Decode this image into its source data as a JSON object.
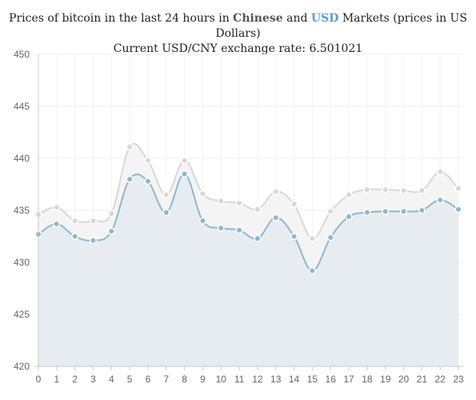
{
  "chart_data": {
    "type": "area",
    "title_parts": {
      "prefix": "Prices of bitcoin in the last 24 hours in",
      "series1": "Chinese",
      "conj": "and",
      "series2": "USD",
      "suffix": "Markets (prices in US Dollars)"
    },
    "subtitle": "Current USD/CNY exchange rate: 6.501021",
    "x": [
      0,
      1,
      2,
      3,
      4,
      5,
      6,
      7,
      8,
      9,
      10,
      11,
      12,
      13,
      14,
      15,
      16,
      17,
      18,
      19,
      20,
      21,
      22,
      23
    ],
    "xlim": [
      0,
      23
    ],
    "ylim": [
      420,
      450
    ],
    "yticks": [
      420,
      425,
      430,
      435,
      440,
      445,
      450
    ],
    "grid": true,
    "series": [
      {
        "name": "Chinese",
        "color": "#d8d8d8",
        "fill": "#f3f3f3",
        "values": [
          434.6,
          435.3,
          434.0,
          434.0,
          434.7,
          441.1,
          439.8,
          436.5,
          439.8,
          436.6,
          435.9,
          435.7,
          435.1,
          436.8,
          435.6,
          432.3,
          434.9,
          436.5,
          437.0,
          437.0,
          436.9,
          436.9,
          438.7,
          437.1
        ]
      },
      {
        "name": "USD",
        "color": "#8fb8cc",
        "fill": "#e3eaee",
        "values": [
          432.7,
          433.7,
          432.5,
          432.1,
          433.0,
          438.0,
          437.8,
          434.8,
          438.5,
          434.0,
          433.3,
          433.1,
          432.3,
          434.3,
          432.5,
          429.2,
          432.4,
          434.4,
          434.8,
          434.9,
          434.9,
          435.0,
          436.0,
          435.1
        ]
      }
    ]
  }
}
